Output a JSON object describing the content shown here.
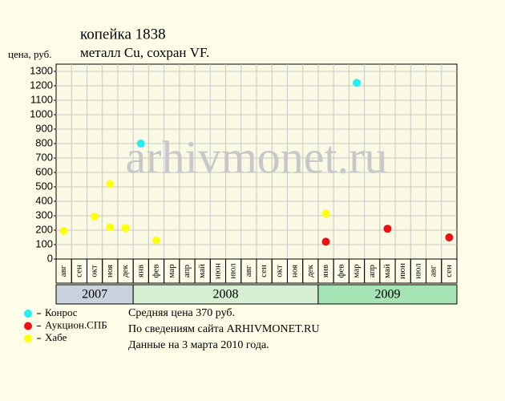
{
  "chart_data": {
    "type": "scatter",
    "title": "копейка 1838",
    "subtitle": "металл Cu, сохран VF.",
    "y_label": "цена, руб.",
    "watermark": "arhivmonet.ru",
    "years": [
      {
        "label": "2007",
        "color": "#c9d3dd",
        "months": [
          "авг",
          "сен",
          "окт",
          "ноя",
          "дек"
        ]
      },
      {
        "label": "2008",
        "color": "#d6efd3",
        "months": [
          "янв",
          "фев",
          "мар",
          "апр",
          "май",
          "июн",
          "июл",
          "авг",
          "сен",
          "окт",
          "ноя",
          "дек"
        ]
      },
      {
        "label": "2009",
        "color": "#a6e4b6",
        "months": [
          "янв",
          "фев",
          "мар",
          "апр",
          "май",
          "июн",
          "июл",
          "авг",
          "сен"
        ]
      }
    ],
    "series": [
      {
        "name": "Конрос",
        "color": "#22f0f0",
        "values": [
          null,
          null,
          null,
          null,
          null,
          [
            800
          ],
          null,
          null,
          null,
          null,
          null,
          null,
          null,
          null,
          null,
          null,
          null,
          null,
          null,
          [
            1220
          ],
          null,
          null,
          null,
          null,
          null,
          null
        ]
      },
      {
        "name": "Аукцион.СПБ",
        "color": "#ee1111",
        "values": [
          null,
          null,
          null,
          null,
          null,
          null,
          null,
          null,
          null,
          null,
          null,
          null,
          null,
          null,
          null,
          null,
          null,
          [
            120
          ],
          null,
          null,
          null,
          [
            210
          ],
          null,
          null,
          null,
          [
            150
          ]
        ]
      },
      {
        "name": "Хабе",
        "color": "#ffff11",
        "values": [
          [
            195
          ],
          null,
          [
            295
          ],
          [
            520,
            220
          ],
          [
            215
          ],
          null,
          [
            130
          ],
          null,
          null,
          null,
          null,
          null,
          null,
          null,
          null,
          null,
          null,
          [
            315
          ],
          null,
          null,
          null,
          null,
          null,
          null,
          null,
          null
        ]
      }
    ],
    "ylim": [
      0,
      1350
    ],
    "yticks": [
      0,
      100,
      200,
      300,
      400,
      500,
      600,
      700,
      800,
      900,
      1000,
      1100,
      1200,
      1300
    ],
    "grid": true,
    "notes": [
      "Средняя цена 370 руб.",
      "По сведениям сайта ARHIVMONET.RU",
      "Данные на 3 марта 2010 года."
    ]
  }
}
